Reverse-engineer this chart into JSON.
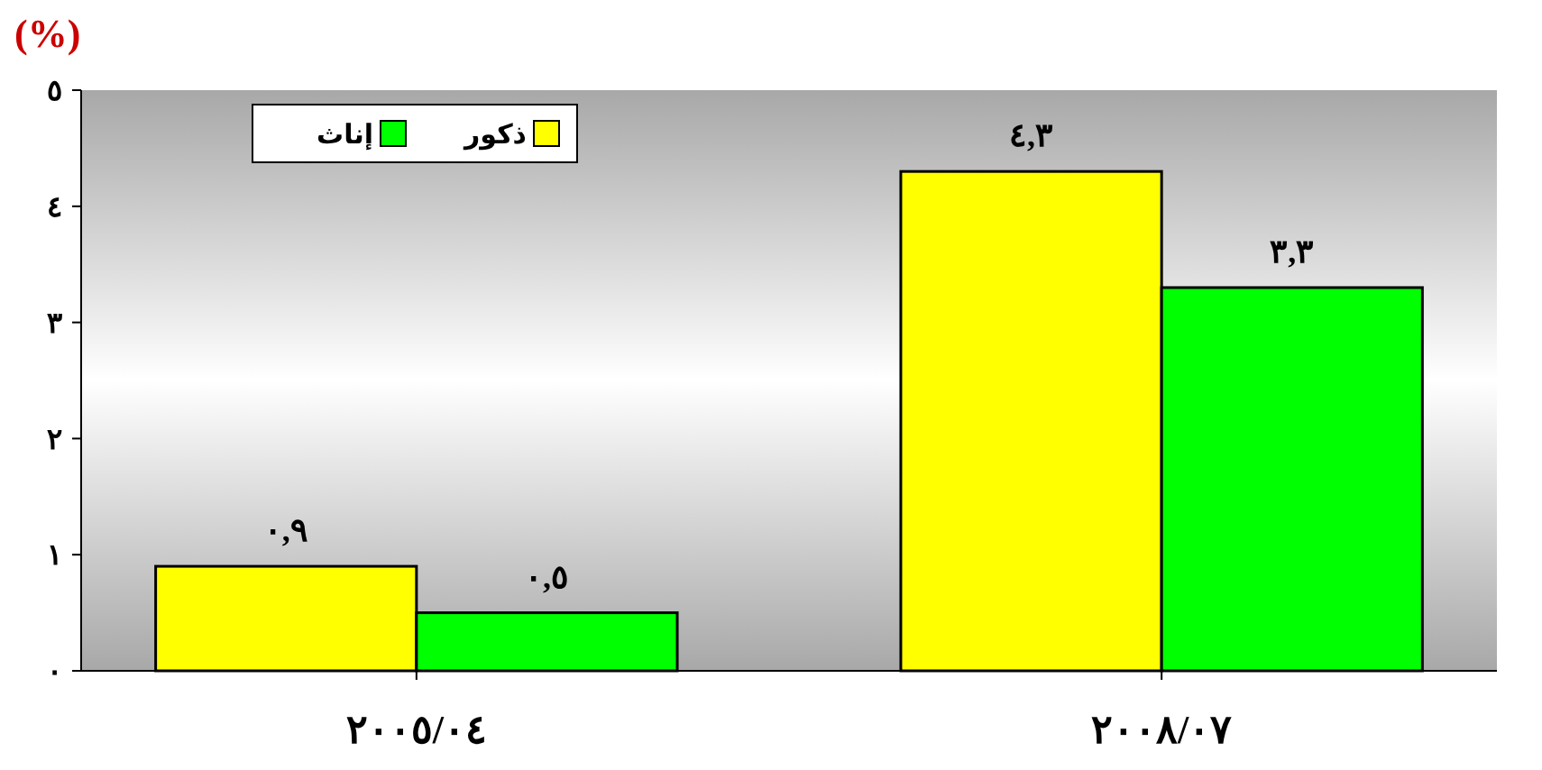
{
  "chart_data": {
    "type": "bar",
    "ylabel": "(%)",
    "categories": [
      "٢٠٠٥/٠٤",
      "٢٠٠٨/٠٧"
    ],
    "series": [
      {
        "name": "ذكور",
        "color": "#ffff00",
        "values": [
          0.9,
          4.3
        ],
        "value_labels": [
          "٠,٩",
          "٤,٣"
        ]
      },
      {
        "name": "إناث",
        "color": "#00ff00",
        "values": [
          0.5,
          3.3
        ],
        "value_labels": [
          "٠,٥",
          "٣,٣"
        ]
      }
    ],
    "ylim": [
      0,
      5
    ],
    "yticks": [
      {
        "value": 0,
        "label": "٠"
      },
      {
        "value": 1,
        "label": "١"
      },
      {
        "value": 2,
        "label": "٢"
      },
      {
        "value": 3,
        "label": "٣"
      },
      {
        "value": 4,
        "label": "٤"
      },
      {
        "value": 5,
        "label": "٥"
      }
    ],
    "legend": "top left"
  }
}
